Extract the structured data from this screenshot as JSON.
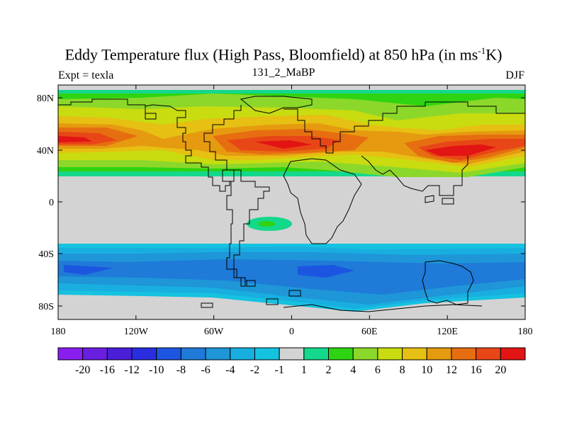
{
  "title": {
    "main": "Eddy Temperature flux (High Pass, Bloomfield) at 850 hPa (in ms",
    "superscript": "-1",
    "tail": "K)"
  },
  "subtitle_left": "Expt = texla",
  "subtitle_center": "131_2_MaBP",
  "subtitle_right": "DJF",
  "map": {
    "lon_ticks": [
      "180",
      "120W",
      "60W",
      "0",
      "60E",
      "120E",
      "180"
    ],
    "lat_ticks": [
      "80N",
      "40N",
      "0",
      "40S",
      "80S"
    ],
    "background_color": "#d3d3d3",
    "coastline_color": "#000000"
  },
  "colorbar": {
    "labels": [
      "-20",
      "-16",
      "-12",
      "-10",
      "-8",
      "-6",
      "-4",
      "-2",
      "-1",
      "1",
      "2",
      "4",
      "6",
      "8",
      "10",
      "12",
      "16",
      "20"
    ],
    "colors": [
      "#8a1df0",
      "#6a1ee0",
      "#4b1ed8",
      "#2a2ee0",
      "#1c56e0",
      "#1f7ad8",
      "#1e96d8",
      "#19aee0",
      "#15c2e0",
      "#d3d3d3",
      "#14d88c",
      "#2ed412",
      "#8cd82a",
      "#c8dc10",
      "#e6c012",
      "#e69a10",
      "#e66e10",
      "#e84616",
      "#e21414"
    ]
  }
}
